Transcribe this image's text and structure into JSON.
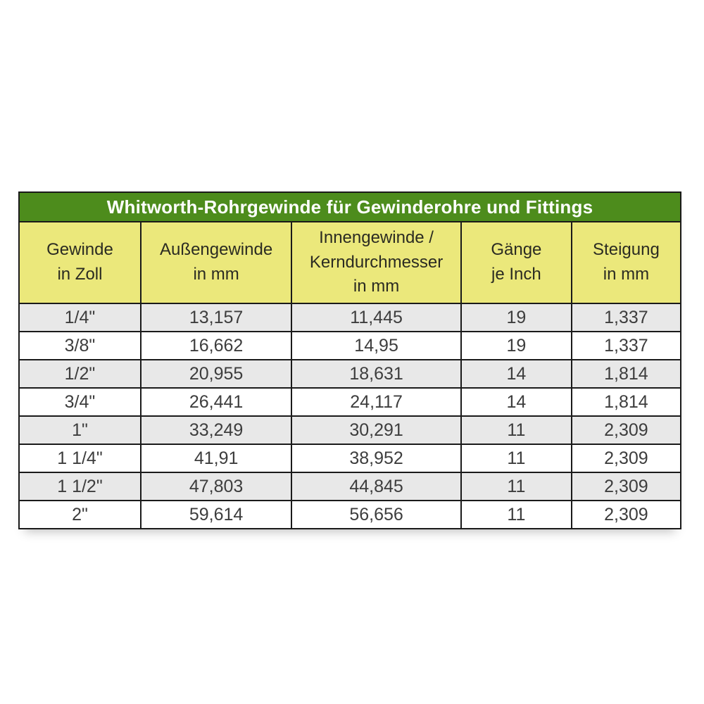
{
  "title": "Whitworth-Rohrgewinde für Gewinderohre und Fittings",
  "header_labels": [
    "Gewinde\nin Zoll",
    "Außengewinde\nin mm",
    "Innengewinde /\nKerndurchmesser\nin mm",
    "Gänge\nje Inch",
    "Steigung\nin mm"
  ],
  "chart_data": {
    "type": "table",
    "title": "Whitworth-Rohrgewinde für Gewinderohre und Fittings",
    "columns": [
      "Gewinde in Zoll",
      "Außengewinde in mm",
      "Innengewinde / Kerndurchmesser in mm",
      "Gänge je Inch",
      "Steigung in mm"
    ],
    "rows": [
      [
        "1/4\"",
        "13,157",
        "11,445",
        "19",
        "1,337"
      ],
      [
        "3/8\"",
        "16,662",
        "14,95",
        "19",
        "1,337"
      ],
      [
        "1/2\"",
        "20,955",
        "18,631",
        "14",
        "1,814"
      ],
      [
        "3/4\"",
        "26,441",
        "24,117",
        "14",
        "1,814"
      ],
      [
        "1\"",
        "33,249",
        "30,291",
        "11",
        "2,309"
      ],
      [
        "1 1/4\"",
        "41,91",
        "38,952",
        "11",
        "2,309"
      ],
      [
        "1 1/2\"",
        "47,803",
        "44,845",
        "11",
        "2,309"
      ],
      [
        "2\"",
        "59,614",
        "56,656",
        "11",
        "2,309"
      ]
    ]
  },
  "colors": {
    "title_bg": "#4d8c1c",
    "title_text": "#ffffff",
    "header_bg": "#ebe87b",
    "header_text": "#2b2b22",
    "row_bg": "#ffffff",
    "row_alt_bg": "#e8e8e8",
    "border": "#1a1a1a",
    "cell_text": "#3d3d3d"
  }
}
